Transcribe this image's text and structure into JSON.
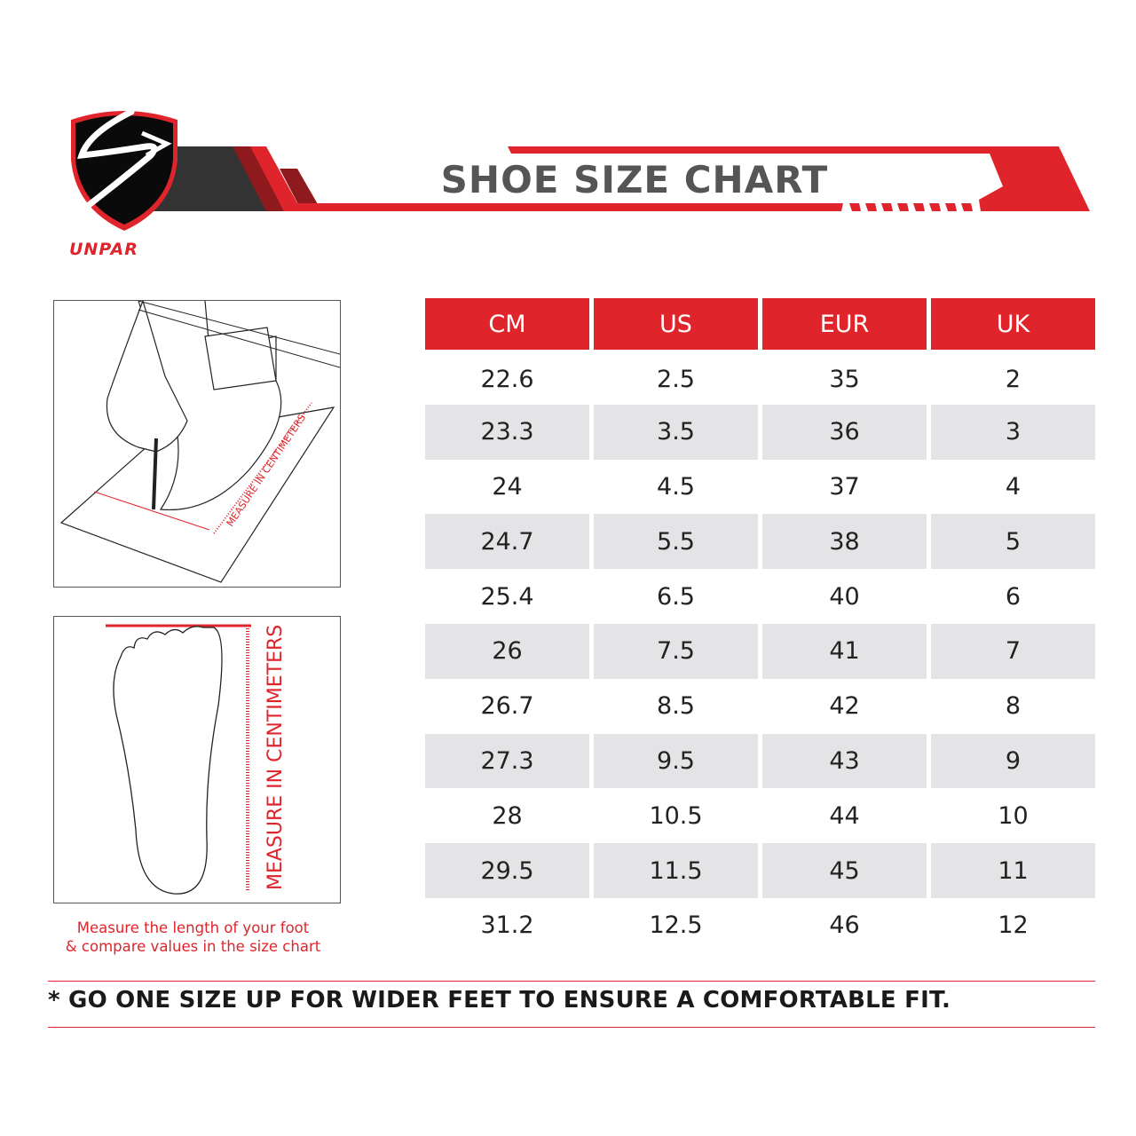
{
  "brand": {
    "name": "UNPAR",
    "logo_letter": "S"
  },
  "header": {
    "title": "SHOE SIZE CHART"
  },
  "colors": {
    "accent": "#e0242b",
    "dark": "#333333",
    "row_shade": "#e4e4e6",
    "title_gray": "#555556"
  },
  "illustrations": {
    "top_label": "MEASURE IN CENTIMETERS",
    "bottom_label": "MEASURE IN CENTIMETERS",
    "caption_line1": "Measure the length of your foot",
    "caption_line2": "& compare values in the size chart"
  },
  "table": {
    "columns": [
      "CM",
      "US",
      "EUR",
      "UK"
    ],
    "rows": [
      [
        "22.6",
        "2.5",
        "35",
        "2"
      ],
      [
        "23.3",
        "3.5",
        "36",
        "3"
      ],
      [
        "24",
        "4.5",
        "37",
        "4"
      ],
      [
        "24.7",
        "5.5",
        "38",
        "5"
      ],
      [
        "25.4",
        "6.5",
        "40",
        "6"
      ],
      [
        "26",
        "7.5",
        "41",
        "7"
      ],
      [
        "26.7",
        "8.5",
        "42",
        "8"
      ],
      [
        "27.3",
        "9.5",
        "43",
        "9"
      ],
      [
        "28",
        "10.5",
        "44",
        "10"
      ],
      [
        "29.5",
        "11.5",
        "45",
        "11"
      ],
      [
        "31.2",
        "12.5",
        "46",
        "12"
      ]
    ]
  },
  "footer": {
    "note": "* GO ONE SIZE UP FOR WIDER FEET TO ENSURE A COMFORTABLE  FIT."
  }
}
